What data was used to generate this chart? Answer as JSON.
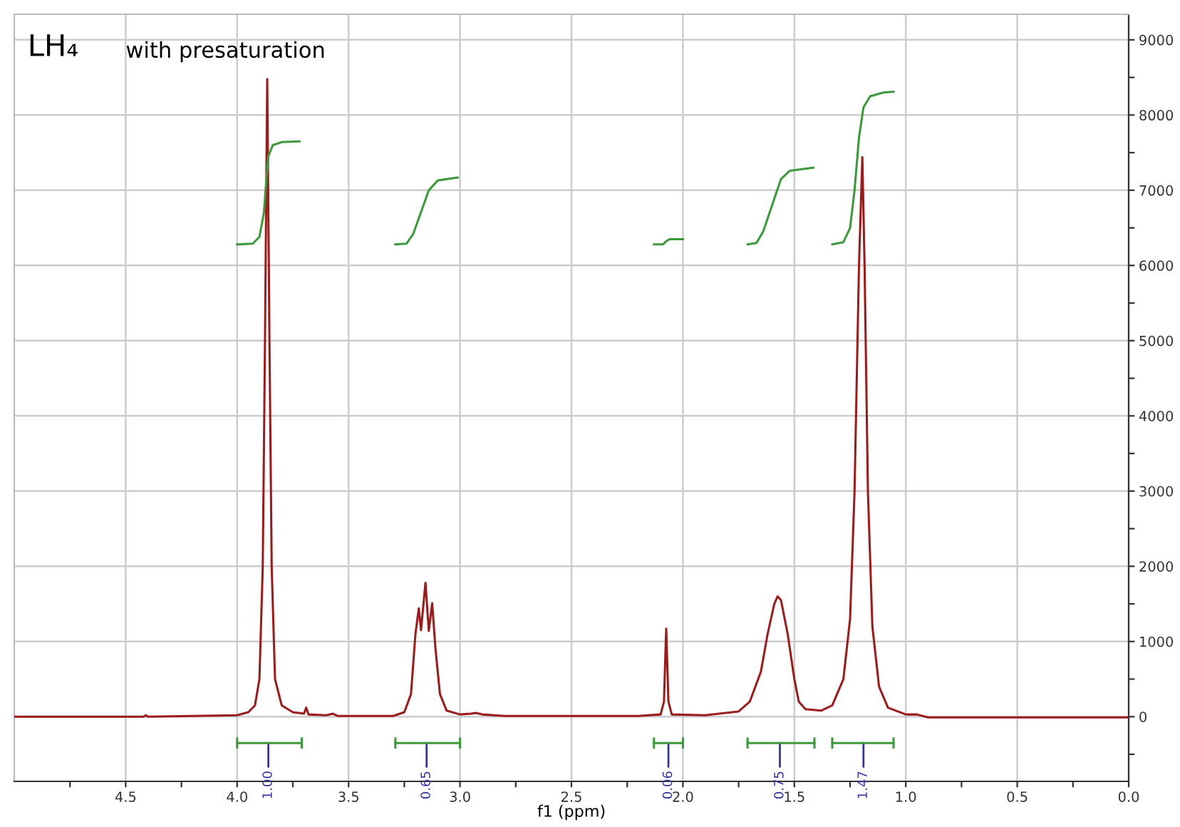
{
  "chart_data": {
    "type": "line",
    "title": "LH₄",
    "subtitle": "with presaturation",
    "xlabel": "f1 (ppm)",
    "xlim": [
      5.0,
      0.0
    ],
    "ylim": [
      -860,
      9340
    ],
    "xticks": [
      {
        "value": 4.75,
        "label": null
      },
      4.5,
      {
        "value": 4.25,
        "label": null
      },
      {
        "value": 4,
        "label": "4.0"
      },
      {
        "value": 3.75,
        "label": null
      },
      3.5,
      {
        "value": 3.25,
        "label": null
      },
      {
        "value": 3,
        "label": "3.0"
      },
      {
        "value": 2.75,
        "label": null
      },
      2.5,
      {
        "value": 2.25,
        "label": null
      },
      {
        "value": 2,
        "label": "2.0"
      },
      {
        "value": 1.75,
        "label": null
      },
      1.5,
      {
        "value": 1.25,
        "label": null
      },
      {
        "value": 1,
        "label": "1.0"
      },
      {
        "value": 0.75,
        "label": null
      },
      0.5,
      {
        "value": 0.25,
        "label": null
      },
      {
        "value": 0,
        "label": "0.0"
      }
    ],
    "yticks": [
      {
        "value": -500,
        "label": null
      },
      0,
      {
        "value": 500,
        "label": null
      },
      1000,
      {
        "value": 1500,
        "label": null
      },
      2000,
      {
        "value": 2500,
        "label": null
      },
      3000,
      {
        "value": 3500,
        "label": null
      },
      4000,
      {
        "value": 4500,
        "label": null
      },
      5000,
      {
        "value": 5500,
        "label": null
      },
      6000,
      {
        "value": 6500,
        "label": null
      },
      7000,
      {
        "value": 7500,
        "label": null
      },
      8000,
      {
        "value": 8500,
        "label": null
      },
      9000
    ],
    "grid": true,
    "series": [
      {
        "color": "#9b1c1c",
        "x": [
          5.0,
          4.42,
          4.41,
          4.4,
          4.0,
          3.95,
          3.92,
          3.9,
          3.885,
          3.875,
          3.865,
          3.855,
          3.845,
          3.83,
          3.8,
          3.75,
          3.7,
          3.69,
          3.68,
          3.6,
          3.57,
          3.55,
          3.3,
          3.25,
          3.22,
          3.2,
          3.185,
          3.175,
          3.155,
          3.14,
          3.125,
          3.11,
          3.09,
          3.06,
          3.0,
          2.95,
          2.93,
          2.9,
          2.8,
          2.2,
          2.1,
          2.085,
          2.075,
          2.065,
          2.05,
          1.9,
          1.75,
          1.7,
          1.65,
          1.62,
          1.59,
          1.575,
          1.56,
          1.53,
          1.5,
          1.48,
          1.45,
          1.38,
          1.33,
          1.28,
          1.25,
          1.23,
          1.21,
          1.195,
          1.185,
          1.17,
          1.15,
          1.12,
          1.08,
          1.0,
          0.95,
          0.9,
          0.5,
          0.0
        ],
        "values": [
          0,
          0,
          20,
          0,
          20,
          60,
          150,
          500,
          2000,
          5000,
          8480,
          5000,
          2000,
          500,
          150,
          60,
          40,
          120,
          30,
          20,
          40,
          10,
          10,
          60,
          300,
          1100,
          1440,
          1150,
          1780,
          1140,
          1510,
          900,
          300,
          80,
          30,
          40,
          50,
          30,
          10,
          10,
          30,
          200,
          1170,
          200,
          30,
          20,
          70,
          200,
          600,
          1100,
          1500,
          1600,
          1550,
          1100,
          500,
          200,
          100,
          80,
          150,
          500,
          1300,
          3000,
          6000,
          7440,
          6000,
          3000,
          1200,
          400,
          120,
          30,
          30,
          -10,
          -10,
          -10
        ]
      },
      {
        "color": "#3c9a3c",
        "x": [
          4.0,
          3.93,
          3.9,
          3.88,
          3.87,
          3.86,
          3.84,
          3.8,
          3.72
        ],
        "values": [
          6280,
          6290,
          6380,
          6700,
          7100,
          7450,
          7600,
          7640,
          7650
        ]
      },
      {
        "color": "#3c9a3c",
        "x": [
          3.29,
          3.24,
          3.21,
          3.17,
          3.14,
          3.1,
          3.01
        ],
        "values": [
          6280,
          6290,
          6420,
          6750,
          7000,
          7130,
          7170
        ]
      },
      {
        "color": "#3c9a3c",
        "x": [
          2.13,
          2.09,
          2.075,
          2.06,
          2.0
        ],
        "values": [
          6280,
          6280,
          6320,
          6350,
          6350
        ]
      },
      {
        "color": "#3c9a3c",
        "x": [
          1.71,
          1.67,
          1.64,
          1.6,
          1.56,
          1.52,
          1.415
        ],
        "values": [
          6280,
          6300,
          6450,
          6800,
          7150,
          7260,
          7300
        ]
      },
      {
        "color": "#3c9a3c",
        "x": [
          1.33,
          1.28,
          1.25,
          1.23,
          1.21,
          1.19,
          1.16,
          1.1,
          1.055
        ],
        "values": [
          6280,
          6310,
          6500,
          7000,
          7700,
          8100,
          8250,
          8300,
          8310
        ]
      },
      {
        "type": "line",
        "color": "#3c9a3c",
        "x": [
          4.0,
          3.71
        ],
        "values": [
          -350,
          -350
        ]
      },
      {
        "type": "line",
        "color": "#3c9a3c",
        "x": [
          3.29,
          3.0
        ],
        "values": [
          -350,
          -350
        ]
      },
      {
        "type": "line",
        "color": "#3c9a3c",
        "x": [
          2.13,
          2.0
        ],
        "values": [
          -350,
          -350
        ]
      },
      {
        "type": "line",
        "color": "#3c9a3c",
        "x": [
          1.71,
          1.41
        ],
        "values": [
          -350,
          -350
        ]
      },
      {
        "type": "line",
        "color": "#3c9a3c",
        "x": [
          1.33,
          1.055
        ],
        "values": [
          -350,
          -350
        ]
      }
    ],
    "annotations": [
      {
        "text": "1.00",
        "x": 3.86,
        "y": -350
      },
      {
        "text": "0.65",
        "x": 3.15,
        "y": -350
      },
      {
        "text": "0.06",
        "x": 2.065,
        "y": -350
      },
      {
        "text": "0.75",
        "x": 1.565,
        "y": -350
      },
      {
        "text": "1.47",
        "x": 1.19,
        "y": -350
      }
    ]
  }
}
